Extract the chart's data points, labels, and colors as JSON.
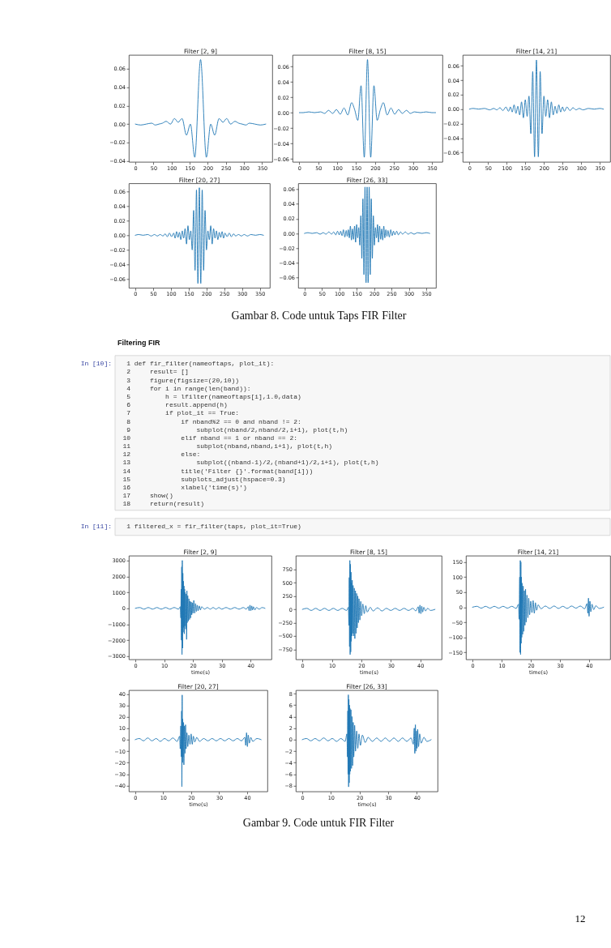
{
  "chart_data": [
    {
      "type": "line",
      "title": "Filter [2, 9]",
      "color": "#1f77b4",
      "xlim": [
        -18,
        378
      ],
      "ylim": [
        -0.041,
        0.075
      ],
      "xticks": [
        0,
        50,
        100,
        150,
        200,
        250,
        300,
        350
      ],
      "yticks": [
        {
          "value": -0.04,
          "label": "−0.04"
        },
        {
          "value": -0.02,
          "label": "−0.02"
        },
        {
          "value": 0,
          "label": "0.00"
        },
        0.02,
        0.04,
        0.06
      ],
      "x": [
        0,
        15,
        30,
        45,
        55,
        65,
        75,
        85,
        97,
        108,
        118,
        129,
        141,
        152,
        164,
        180,
        196,
        208,
        219,
        231,
        242,
        252,
        263,
        275,
        285,
        295,
        305,
        315,
        330,
        345,
        360
      ],
      "values": [
        0,
        -0.001,
        0,
        0.001,
        -0.001,
        0,
        0.001,
        0.003,
        0,
        0.006,
        0.002,
        0.006,
        -0.012,
        0,
        -0.036,
        0.07,
        -0.036,
        0,
        -0.012,
        0.006,
        0.002,
        0.006,
        0,
        0.003,
        0.001,
        0,
        -0.001,
        0.001,
        0,
        -0.001,
        0
      ]
    },
    {
      "type": "line",
      "title": "Filter [8, 15]",
      "color": "#1f77b4",
      "xlim": [
        -18,
        378
      ],
      "ylim": [
        -0.064,
        0.075
      ],
      "xticks": [
        0,
        50,
        100,
        150,
        200,
        250,
        300,
        350
      ],
      "yticks": [
        {
          "value": -0.06,
          "label": "−0.06"
        },
        {
          "value": -0.04,
          "label": "−0.04"
        },
        {
          "value": -0.02,
          "label": "−0.02"
        },
        {
          "value": 0,
          "label": "0.00"
        },
        0.02,
        0.04,
        0.06
      ],
      "x": [
        0,
        10,
        25,
        40,
        56,
        67,
        77,
        88,
        98,
        108,
        118,
        128,
        138,
        146,
        154.5,
        163,
        171.5,
        180,
        188.5,
        197,
        205.5,
        214,
        222,
        232,
        242,
        252,
        262,
        272,
        283,
        293,
        304,
        320,
        335,
        350,
        360
      ],
      "values": [
        0,
        0,
        0.001,
        0,
        0.001,
        -0.001,
        0.003,
        -0.001,
        0.004,
        -0.002,
        0.006,
        -0.003,
        0.013,
        0.004,
        -0.01,
        0.035,
        -0.058,
        0.069,
        -0.058,
        0.035,
        -0.01,
        0.004,
        0.013,
        -0.003,
        0.006,
        -0.002,
        0.004,
        -0.001,
        0.003,
        -0.001,
        0.001,
        0,
        0.001,
        0,
        0
      ]
    },
    {
      "type": "line",
      "title": "Filter [14, 21]",
      "color": "#1f77b4",
      "xlim": [
        -18,
        378
      ],
      "ylim": [
        -0.073,
        0.075
      ],
      "xticks": [
        0,
        50,
        100,
        150,
        200,
        250,
        300,
        350
      ],
      "yticks": [
        {
          "value": -0.06,
          "label": "−0.06"
        },
        {
          "value": -0.04,
          "label": "−0.04"
        },
        {
          "value": -0.02,
          "label": "−0.02"
        },
        {
          "value": 0,
          "label": "0.00"
        },
        0.02,
        0.04,
        0.06
      ],
      "x": [
        0,
        10,
        25,
        40,
        55,
        65,
        74,
        82,
        90,
        98,
        105,
        110,
        115,
        120,
        125,
        130,
        135,
        140,
        145,
        150,
        155,
        160,
        165,
        170,
        175,
        180,
        185,
        190,
        195,
        200,
        205,
        210,
        215,
        220,
        225,
        230,
        235,
        240,
        245,
        250,
        255,
        262,
        270,
        278,
        286,
        295,
        305,
        320,
        335,
        350,
        360
      ],
      "values": [
        0,
        0.001,
        0,
        0.001,
        -0.001,
        0.001,
        -0.001,
        0.002,
        -0.002,
        0.003,
        -0.003,
        0.003,
        -0.004,
        0.006,
        -0.006,
        0.004,
        -0.008,
        0.01,
        -0.012,
        0.013,
        -0.01,
        0.018,
        -0.034,
        0.052,
        -0.066,
        0.068,
        -0.066,
        0.052,
        -0.034,
        0.018,
        -0.01,
        0.013,
        -0.012,
        0.01,
        -0.008,
        0.004,
        -0.006,
        0.006,
        -0.004,
        0.003,
        -0.003,
        0.003,
        -0.002,
        0.002,
        -0.001,
        0.001,
        -0.001,
        0.001,
        0,
        0.001,
        0
      ]
    },
    {
      "type": "line",
      "title": "Filter [20, 27]",
      "color": "#1f77b4",
      "xlim": [
        -18,
        378
      ],
      "ylim": [
        -0.072,
        0.071
      ],
      "xticks": [
        0,
        50,
        100,
        150,
        200,
        250,
        300,
        350
      ],
      "yticks": [
        {
          "value": -0.06,
          "label": "−0.06"
        },
        {
          "value": -0.04,
          "label": "−0.04"
        },
        {
          "value": -0.02,
          "label": "−0.02"
        },
        {
          "value": 0,
          "label": "0.00"
        },
        0.02,
        0.04,
        0.06
      ],
      "x": [
        0,
        10,
        22,
        35,
        45,
        54,
        62,
        70,
        78,
        84,
        90,
        96,
        102,
        108,
        112,
        116,
        120,
        124,
        128,
        132,
        136,
        140,
        144,
        148,
        152,
        156,
        160,
        164,
        168,
        172,
        176,
        180,
        184,
        188,
        192,
        196,
        200,
        204,
        208,
        212,
        216,
        220,
        224,
        228,
        232,
        236,
        240,
        244,
        248,
        252,
        258,
        264,
        270,
        276,
        282,
        290,
        298,
        306,
        315,
        325,
        338,
        350,
        360
      ],
      "values": [
        0,
        0.001,
        0,
        0.001,
        -0.001,
        0.001,
        -0.001,
        0.001,
        -0.001,
        0.002,
        -0.002,
        0.003,
        -0.002,
        0.003,
        -0.004,
        0.005,
        -0.003,
        0.004,
        -0.006,
        0.006,
        -0.004,
        0.009,
        -0.012,
        0.013,
        -0.006,
        0.006,
        -0.02,
        0.034,
        -0.048,
        0.062,
        -0.066,
        0.065,
        -0.066,
        0.062,
        -0.048,
        0.034,
        -0.02,
        0.006,
        -0.006,
        0.013,
        -0.012,
        0.009,
        -0.004,
        0.006,
        -0.006,
        0.004,
        -0.003,
        0.005,
        -0.004,
        0.003,
        -0.002,
        0.003,
        -0.002,
        0.002,
        -0.001,
        0.001,
        -0.001,
        0.001,
        -0.001,
        0.001,
        0,
        0.001,
        0
      ]
    },
    {
      "type": "line",
      "title": "Filter [26, 33]",
      "color": "#1f77b4",
      "xlim": [
        -18,
        378
      ],
      "ylim": [
        -0.074,
        0.068
      ],
      "xticks": [
        0,
        50,
        100,
        150,
        200,
        250,
        300,
        350
      ],
      "yticks": [
        {
          "value": -0.06,
          "label": "−0.06"
        },
        {
          "value": -0.04,
          "label": "−0.04"
        },
        {
          "value": -0.02,
          "label": "−0.02"
        },
        {
          "value": 0,
          "label": "0.00"
        },
        0.02,
        0.04,
        0.06
      ],
      "x": [
        0,
        10,
        22,
        35,
        45,
        54,
        62,
        70,
        78,
        84,
        90,
        95,
        100,
        104,
        108,
        112,
        116,
        120,
        123,
        126,
        129,
        132,
        135,
        138,
        141,
        144,
        147,
        150,
        153,
        156,
        159,
        162,
        165,
        168,
        171,
        174,
        177,
        180,
        183,
        186,
        189,
        192,
        195,
        198,
        201,
        204,
        207,
        210,
        213,
        216,
        219,
        222,
        225,
        228,
        231,
        234,
        237,
        240,
        244,
        248,
        252,
        256,
        260,
        265,
        270,
        276,
        282,
        290,
        298,
        306,
        315,
        325,
        338,
        350,
        360
      ],
      "values": [
        0,
        0.001,
        0,
        0.001,
        -0.001,
        0.001,
        -0.001,
        0.002,
        -0.001,
        0.002,
        -0.002,
        0.003,
        -0.002,
        0.003,
        -0.003,
        0.005,
        -0.005,
        0.004,
        -0.004,
        0.005,
        -0.006,
        0.01,
        -0.009,
        0.006,
        -0.008,
        0.01,
        -0.012,
        0.012,
        -0.006,
        0.008,
        -0.016,
        0.024,
        -0.034,
        0.047,
        -0.056,
        0.063,
        -0.067,
        0.063,
        -0.067,
        0.063,
        -0.056,
        0.047,
        -0.034,
        0.024,
        -0.016,
        0.008,
        -0.006,
        0.012,
        -0.012,
        0.01,
        -0.008,
        0.006,
        -0.009,
        0.01,
        -0.006,
        0.005,
        -0.004,
        0.004,
        -0.005,
        0.005,
        -0.003,
        0.003,
        -0.002,
        0.003,
        -0.002,
        0.002,
        -0.001,
        0.002,
        -0.001,
        0.001,
        -0.001,
        0.001,
        0,
        0.001,
        0
      ]
    },
    {
      "type": "other",
      "annotations": [
        "Gambar 8. Code untuk Taps FIR Filter"
      ]
    },
    {
      "type": "other",
      "title": "Filtering FIR",
      "ylabel": "In [10]:",
      "annotations": [
        "1 def fir_filter(nameoftaps, plot_it):",
        "2     result= []",
        "3     figure(figsize=(20,10))",
        "4     for i in range(len(band)):",
        "5         h = lfilter(nameoftaps[i],1.0,data)",
        "6         result.append(h)",
        "7         if plot_it == True:",
        "8             if nband%2 == 0 and nband != 2:",
        "9                 subplot(nband/2,nband/2,i+1), plot(t,h)",
        "10             elif nband == 1 or nband == 2:",
        "11                 subplot(nband,nband,i+1), plot(t,h)",
        "12             else:",
        "13                 subplot((nband-1)/2,(nband+1)/2,i+1), plot(t,h)",
        "14             title('Filter {}'.format(band[i]))",
        "15             subplots_adjust(hspace=0.3)",
        "16             xlabel('time(s)')",
        "17     show()",
        "18     return(result)"
      ]
    },
    {
      "type": "other",
      "ylabel": "In [11]:",
      "annotations": [
        "1 filtered_x = fir_filter(taps, plot_it=True)"
      ]
    },
    {
      "type": "line",
      "title": "Filter [2, 9]",
      "xlabel": "time(s)",
      "color": "#1f77b4",
      "xlim": [
        -2.25,
        47.25
      ],
      "ylim": [
        -3200,
        3300
      ],
      "xticks": [
        0,
        10,
        20,
        30,
        40
      ],
      "yticks": [
        {
          "value": -3000,
          "label": "−3000"
        },
        {
          "value": -2000,
          "label": "−2000"
        },
        {
          "value": -1000,
          "label": "−1000"
        },
        0,
        1000,
        2000,
        3000
      ],
      "x": [
        0,
        1.5,
        3,
        4.5,
        6,
        7.5,
        9,
        10.5,
        12,
        13.5,
        15,
        15.6,
        15.8,
        15.9,
        16.0,
        16.1,
        16.2,
        16.3,
        16.4,
        16.5,
        16.6,
        16.7,
        16.8,
        16.9,
        17.0,
        17.1,
        17.2,
        17.3,
        17.5,
        17.7,
        17.8,
        17.9,
        18.0,
        18.2,
        18.4,
        18.6,
        18.8,
        19.0,
        19.2,
        19.4,
        19.6,
        19.8,
        20.0,
        20.3,
        20.6,
        20.9,
        21.2,
        21.5,
        21.8,
        22.2,
        22.6,
        23,
        24,
        25,
        26,
        27,
        28,
        29,
        30,
        31.5,
        33,
        34.5,
        36,
        37.5,
        38.5,
        39.2,
        39.5,
        39.8,
        40.1,
        40.4,
        40.7,
        41,
        41.5,
        42,
        43,
        44,
        45
      ],
      "values": [
        0,
        50,
        -50,
        50,
        -50,
        50,
        -50,
        50,
        -50,
        50,
        -50,
        100,
        -600,
        1200,
        -2000,
        2600,
        -2900,
        3000,
        -2500,
        2200,
        -1500,
        1700,
        -1200,
        1400,
        -1600,
        1200,
        -1100,
        1000,
        -1300,
        900,
        -1950,
        1100,
        -900,
        800,
        -800,
        600,
        -700,
        450,
        -600,
        400,
        -400,
        350,
        -300,
        500,
        -300,
        300,
        -200,
        200,
        -150,
        150,
        -100,
        100,
        -50,
        50,
        -50,
        50,
        -50,
        50,
        -50,
        50,
        -50,
        50,
        -50,
        50,
        -50,
        100,
        -150,
        200,
        -150,
        150,
        -100,
        100,
        -100,
        50,
        -50,
        50,
        0
      ]
    },
    {
      "type": "line",
      "title": "Filter [8, 15]",
      "xlabel": "time(s)",
      "color": "#1f77b4",
      "xlim": [
        -2.25,
        47.25
      ],
      "ylim": [
        -940,
        1010
      ],
      "xticks": [
        0,
        10,
        20,
        30,
        40
      ],
      "yticks": [
        {
          "value": -750,
          "label": "−750"
        },
        {
          "value": -500,
          "label": "−500"
        },
        {
          "value": -250,
          "label": "−250"
        },
        0,
        250,
        500,
        750
      ],
      "x": [
        0,
        1.5,
        3,
        4.5,
        6,
        7.5,
        9,
        10.5,
        12,
        13.5,
        15,
        15.6,
        15.8,
        15.9,
        16.0,
        16.1,
        16.2,
        16.3,
        16.4,
        16.5,
        16.6,
        16.7,
        16.8,
        16.9,
        17.0,
        17.2,
        17.4,
        17.6,
        17.8,
        18.0,
        18.2,
        18.4,
        18.6,
        18.8,
        19.0,
        19.2,
        19.5,
        19.8,
        20.1,
        20.5,
        21.0,
        21.5,
        22,
        23,
        24,
        25.5,
        27,
        28.5,
        30,
        31.5,
        33,
        34.5,
        36,
        37.5,
        38.5,
        39.3,
        39.6,
        39.9,
        40.2,
        40.5,
        40.8,
        41.2,
        41.8,
        42.5,
        43.5,
        45
      ],
      "values": [
        0,
        20,
        -20,
        20,
        -20,
        20,
        -20,
        20,
        -20,
        20,
        -20,
        40,
        -300,
        600,
        -700,
        920,
        -850,
        850,
        -800,
        700,
        -600,
        500,
        -500,
        550,
        -450,
        450,
        -500,
        400,
        -550,
        350,
        -450,
        300,
        -350,
        250,
        -250,
        200,
        -200,
        150,
        -120,
        100,
        -80,
        70,
        -50,
        40,
        -30,
        30,
        -30,
        20,
        -20,
        20,
        -20,
        20,
        -20,
        20,
        -30,
        50,
        -70,
        80,
        -80,
        60,
        -50,
        40,
        -30,
        20,
        -20,
        0
      ]
    },
    {
      "type": "line",
      "title": "Filter [14, 21]",
      "xlabel": "time(s)",
      "color": "#1f77b4",
      "xlim": [
        -2.25,
        47.25
      ],
      "ylim": [
        -173,
        171
      ],
      "xticks": [
        0,
        10,
        20,
        30,
        40
      ],
      "yticks": [
        {
          "value": -150,
          "label": "−150"
        },
        {
          "value": -100,
          "label": "−100"
        },
        {
          "value": -50,
          "label": "−50"
        },
        0,
        50,
        100,
        150
      ],
      "x": [
        0,
        1.5,
        3,
        4.5,
        6,
        7.5,
        9,
        10.5,
        12,
        13.5,
        15,
        15.8,
        16.0,
        16.2,
        16.3,
        16.4,
        16.5,
        16.6,
        16.7,
        16.8,
        16.9,
        17.0,
        17.2,
        17.4,
        17.6,
        17.8,
        18.0,
        18.2,
        18.4,
        18.7,
        19.0,
        19.3,
        19.6,
        20.0,
        20.4,
        20.8,
        21.2,
        21.6,
        22.0,
        22.5,
        23.5,
        25,
        26.5,
        28,
        29.5,
        31,
        32.5,
        34,
        35.5,
        37,
        38.5,
        39.3,
        39.6,
        39.8,
        40.0,
        40.3,
        40.6,
        41.0,
        41.6,
        42.3,
        43.5,
        45
      ],
      "values": [
        0,
        3,
        -3,
        3,
        -3,
        3,
        -3,
        3,
        -3,
        3,
        -4,
        10,
        -40,
        100,
        -150,
        155,
        -157,
        150,
        -120,
        100,
        -100,
        80,
        -90,
        70,
        -80,
        55,
        -60,
        60,
        -50,
        40,
        -35,
        30,
        -25,
        20,
        -18,
        22,
        -20,
        15,
        -10,
        8,
        -5,
        4,
        -4,
        4,
        -4,
        3,
        -4,
        4,
        -3,
        4,
        -5,
        12,
        -20,
        30,
        -30,
        20,
        -15,
        10,
        -8,
        5,
        -4,
        0
      ]
    },
    {
      "type": "line",
      "title": "Filter [20, 27]",
      "xlabel": "time(s)",
      "color": "#1f77b4",
      "xlim": [
        -2.25,
        47.25
      ],
      "ylim": [
        -45.2,
        43.2
      ],
      "xticks": [
        0,
        10,
        20,
        30,
        40
      ],
      "yticks": [
        {
          "value": -40,
          "label": "−40"
        },
        {
          "value": -30,
          "label": "−30"
        },
        {
          "value": -20,
          "label": "−20"
        },
        {
          "value": -10,
          "label": "−10"
        },
        0,
        10,
        20,
        30,
        40
      ],
      "x": [
        0,
        1.5,
        3,
        4.5,
        6,
        7.5,
        9,
        10.5,
        12,
        13.5,
        15,
        15.9,
        16.1,
        16.3,
        16.5,
        16.6,
        16.7,
        16.8,
        16.9,
        17.0,
        17.1,
        17.3,
        17.4,
        17.6,
        17.8,
        18.0,
        18.2,
        18.5,
        18.8,
        19.2,
        19.6,
        20.0,
        20.4,
        20.8,
        21.3,
        22,
        23,
        24.5,
        26,
        27.5,
        29,
        30.5,
        32,
        33.5,
        35,
        36.5,
        38,
        39.2,
        39.5,
        39.8,
        40.1,
        40.4,
        40.8,
        41.3,
        42,
        43.5,
        45
      ],
      "values": [
        0,
        1,
        -1,
        1.5,
        -1,
        1,
        -1.5,
        1,
        -1,
        1.5,
        -1.5,
        3,
        -8,
        12,
        -15,
        25,
        -41,
        39,
        -20,
        18,
        -15,
        15,
        -22,
        12,
        -12,
        13,
        -8,
        6,
        -6,
        4,
        -4,
        5,
        -4,
        3,
        -2,
        2,
        -1.5,
        1,
        -1,
        1,
        -1,
        1,
        -1,
        1,
        -1,
        1,
        -1,
        2,
        -5,
        6,
        -6,
        4,
        -3,
        2,
        -1.5,
        1,
        0
      ]
    },
    {
      "type": "line",
      "title": "Filter [26, 33]",
      "xlabel": "time(s)",
      "color": "#1f77b4",
      "xlim": [
        -2.25,
        47.25
      ],
      "ylim": [
        -9.0,
        8.6
      ],
      "xticks": [
        0,
        10,
        20,
        30,
        40
      ],
      "yticks": [
        {
          "value": -8,
          "label": "−8"
        },
        {
          "value": -6,
          "label": "−6"
        },
        {
          "value": -4,
          "label": "−4"
        },
        {
          "value": -2,
          "label": "−2"
        },
        0,
        2,
        4,
        6,
        8
      ],
      "x": [
        0,
        1.5,
        3,
        4.5,
        6,
        7.5,
        9,
        10.5,
        12,
        13.5,
        15,
        15.6,
        15.8,
        15.9,
        16.0,
        16.1,
        16.2,
        16.3,
        16.4,
        16.5,
        16.6,
        16.7,
        16.8,
        17.0,
        17.2,
        17.4,
        17.6,
        17.8,
        18.0,
        18.3,
        18.6,
        19.0,
        19.4,
        19.8,
        20.3,
        21,
        22,
        23,
        24.5,
        26,
        27.5,
        29,
        30.5,
        32,
        33.5,
        35,
        36.5,
        38,
        38.8,
        39.1,
        39.3,
        39.5,
        39.7,
        39.9,
        40.1,
        40.3,
        40.6,
        41.0,
        41.5,
        42.5,
        43.5,
        45
      ],
      "values": [
        0,
        0.2,
        -0.2,
        0.2,
        -0.2,
        0.3,
        -0.2,
        0.2,
        -0.3,
        0.2,
        -0.3,
        1,
        -3,
        5,
        -6,
        7.8,
        -8.2,
        7,
        -7.5,
        6,
        -6,
        5.4,
        -5.5,
        5.2,
        -5,
        4,
        -4.5,
        3,
        -3,
        2.5,
        -2,
        1.5,
        -1.5,
        1,
        -1,
        0.8,
        -0.5,
        0.4,
        -0.3,
        0.3,
        -0.3,
        0.3,
        -0.3,
        0.3,
        -0.3,
        0.3,
        -0.3,
        0.3,
        -0.8,
        2.0,
        -2.4,
        2.6,
        -2.0,
        1.5,
        -1.5,
        1.8,
        -1.2,
        1.0,
        -0.6,
        0.4,
        -0.3,
        0
      ]
    },
    {
      "type": "other",
      "annotations": [
        "Gambar 9. Code untuk FIR Filter",
        "12"
      ]
    }
  ]
}
